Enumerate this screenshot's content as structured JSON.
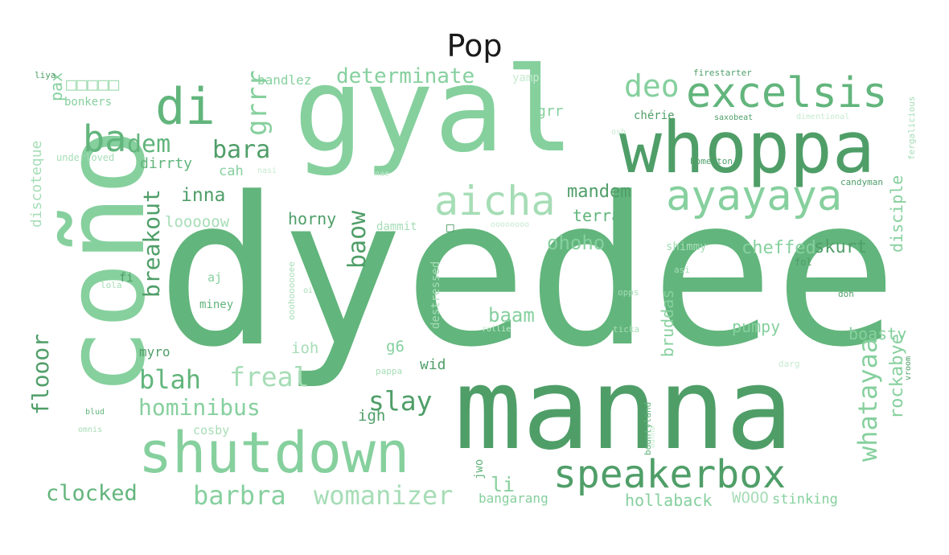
{
  "title": "Pop",
  "colors": {
    "dark": "#4f9e68",
    "mid": "#62b57c",
    "light": "#86d09e",
    "pale": "#a6ddb6",
    "faint": "#c6ebd0"
  },
  "words": [
    {
      "text": "dyedee",
      "tone": "mid"
    },
    {
      "text": "gyal",
      "tone": "light"
    },
    {
      "text": "manna",
      "tone": "dark"
    },
    {
      "text": "coño",
      "tone": "light"
    },
    {
      "text": "whoppa",
      "tone": "dark"
    },
    {
      "text": "shutdown",
      "tone": "light"
    },
    {
      "text": "excelsis",
      "tone": "mid"
    },
    {
      "text": "ayayaya",
      "tone": "light"
    },
    {
      "text": "aicha",
      "tone": "pale"
    },
    {
      "text": "speakerbox",
      "tone": "dark"
    },
    {
      "text": "di",
      "tone": "mid"
    },
    {
      "text": "ba",
      "tone": "mid"
    },
    {
      "text": "dem",
      "tone": "mid"
    },
    {
      "text": "deo",
      "tone": "light"
    },
    {
      "text": "determinate",
      "tone": "light"
    },
    {
      "text": "grrr",
      "tone": "light"
    },
    {
      "text": "bara",
      "tone": "dark"
    },
    {
      "text": "breakout",
      "tone": "dark"
    },
    {
      "text": "blah",
      "tone": "mid"
    },
    {
      "text": "freal",
      "tone": "pale"
    },
    {
      "text": "hominibus",
      "tone": "light"
    },
    {
      "text": "barbra",
      "tone": "light"
    },
    {
      "text": "womanizer",
      "tone": "pale"
    },
    {
      "text": "clocked",
      "tone": "mid"
    },
    {
      "text": "slay",
      "tone": "dark"
    },
    {
      "text": "whatayaa",
      "tone": "light"
    },
    {
      "text": "rockabye",
      "tone": "light"
    },
    {
      "text": "flooor",
      "tone": "dark"
    },
    {
      "text": "baow",
      "tone": "dark"
    },
    {
      "text": "inna",
      "tone": "dark"
    },
    {
      "text": "mandem",
      "tone": "dark"
    },
    {
      "text": "ohoho",
      "tone": "light"
    },
    {
      "text": "cheffed",
      "tone": "light"
    },
    {
      "text": "skurt",
      "tone": "dark"
    },
    {
      "text": "baam",
      "tone": "light"
    },
    {
      "text": "terra",
      "tone": "mid"
    },
    {
      "text": "horny",
      "tone": "dark"
    },
    {
      "text": "looooow",
      "tone": "pale"
    },
    {
      "text": "dirrty",
      "tone": "mid"
    },
    {
      "text": "cah",
      "tone": "light"
    },
    {
      "text": "pax",
      "tone": "light"
    },
    {
      "text": "discoteque",
      "tone": "pale"
    },
    {
      "text": "disciple",
      "tone": "light"
    },
    {
      "text": "bruddas",
      "tone": "light"
    },
    {
      "text": "boasty",
      "tone": "light"
    },
    {
      "text": "pumpy",
      "tone": "light"
    },
    {
      "text": "hollaback",
      "tone": "light"
    },
    {
      "text": "WOOO",
      "tone": "pale"
    },
    {
      "text": "stinking",
      "tone": "light"
    },
    {
      "text": "li",
      "tone": "light"
    },
    {
      "text": "bangarang",
      "tone": "light"
    },
    {
      "text": "igh",
      "tone": "dark"
    },
    {
      "text": "g6",
      "tone": "light"
    },
    {
      "text": "wid",
      "tone": "dark"
    },
    {
      "text": "ioh",
      "tone": "pale"
    },
    {
      "text": "myro",
      "tone": "dark"
    },
    {
      "text": "cosby",
      "tone": "pale"
    },
    {
      "text": "bandlez",
      "tone": "light"
    },
    {
      "text": "yamp",
      "tone": "faint"
    },
    {
      "text": "grr",
      "tone": "light"
    },
    {
      "text": "chérie",
      "tone": "dark"
    },
    {
      "text": "bonkers",
      "tone": "light"
    },
    {
      "text": "liya",
      "tone": "dark"
    },
    {
      "text": "□□□□□",
      "tone": "pale"
    },
    {
      "text": "underloved",
      "tone": "pale"
    },
    {
      "text": "firestarter",
      "tone": "dark"
    },
    {
      "text": "saxobeat",
      "tone": "dark"
    },
    {
      "text": "dimentional",
      "tone": "faint"
    },
    {
      "text": "fergalicious",
      "tone": "pale"
    },
    {
      "text": "homerton",
      "tone": "dark"
    },
    {
      "text": "candyman",
      "tone": "dark"
    },
    {
      "text": "shimmy",
      "tone": "pale"
    },
    {
      "text": "fol",
      "tone": "dark"
    },
    {
      "text": "asi",
      "tone": "pale"
    },
    {
      "text": "doh",
      "tone": "dark"
    },
    {
      "text": "opps",
      "tone": "pale"
    },
    {
      "text": "ticka",
      "tone": "pale"
    },
    {
      "text": "darg",
      "tone": "faint"
    },
    {
      "text": "vroom",
      "tone": "dark"
    },
    {
      "text": "bountyland",
      "tone": "mid"
    },
    {
      "text": "dunno",
      "tone": "faint"
    },
    {
      "text": "jwo",
      "tone": "mid"
    },
    {
      "text": "destressed",
      "tone": "pale"
    },
    {
      "text": "rollie",
      "tone": "faint"
    },
    {
      "text": "pappa",
      "tone": "pale"
    },
    {
      "text": "ooohoooooee",
      "tone": "pale"
    },
    {
      "text": "oi",
      "tone": "pale"
    },
    {
      "text": "miney",
      "tone": "mid"
    },
    {
      "text": "aj",
      "tone": "light"
    },
    {
      "text": "lola",
      "tone": "pale"
    },
    {
      "text": "fi",
      "tone": "dark"
    },
    {
      "text": "blud",
      "tone": "mid"
    },
    {
      "text": "omnis",
      "tone": "pale"
    },
    {
      "text": "dammit",
      "tone": "pale"
    },
    {
      "text": "nae",
      "tone": "faint"
    },
    {
      "text": "nasi",
      "tone": "faint"
    },
    {
      "text": "osh",
      "tone": "faint"
    },
    {
      "text": "oooooooo",
      "tone": "faint"
    },
    {
      "text": "□",
      "tone": "dark"
    }
  ]
}
